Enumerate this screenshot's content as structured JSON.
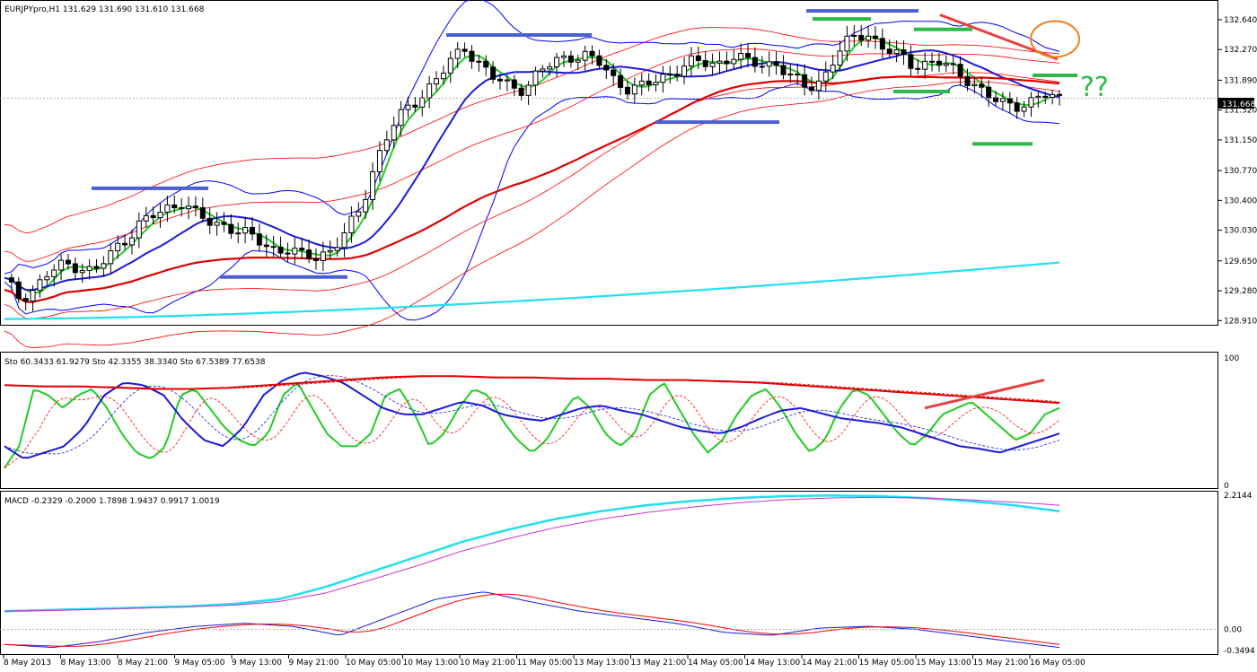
{
  "panels": {
    "price_header": "EURJPYpro,H1  131.629 131.690 131.610 131.668",
    "stoch_header": "Sto 60.3433 61.9279  Sto 42.3355 38.3340  Sto 67.5389 77.6538",
    "macd_header": "MACD -0.2329 -0.2000 1.7898 1.9437 0.9917 1.0019"
  },
  "annotation_text": "??",
  "current_price_label": "131.668",
  "colors": {
    "background": "#ffffff",
    "candle": "#000000",
    "bollinger": "#0000ff",
    "envelope": "#ff0000",
    "ema_green": "#22cc22",
    "ema_blue": "#1a1adc",
    "ema_red": "#e00000",
    "ema_cyan": "#20e0f0",
    "support_blue_lines": "#4a5fd0",
    "support_green_lines": "#2db84a",
    "trendline": "#e84040",
    "circle": "#f08020",
    "macd_signal_magenta": "#cc33cc"
  },
  "chart_data": [
    {
      "type": "candlestick",
      "panel": "price",
      "symbol": "EURJPYpro",
      "timeframe": "H1",
      "ohlc_last": {
        "open": 131.629,
        "high": 131.69,
        "low": 131.61,
        "close": 131.668
      },
      "y_ticks": [
        132.64,
        132.27,
        131.89,
        131.52,
        131.15,
        130.77,
        130.4,
        130.03,
        129.65,
        129.28,
        128.91
      ],
      "ylim": [
        128.88,
        132.84
      ],
      "x_tick_labels": [
        "8 May 2013",
        "8 May 13:00",
        "8 May 21:00",
        "9 May 05:00",
        "9 May 13:00",
        "9 May 21:00",
        "10 May 05:00",
        "10 May 13:00",
        "10 May 21:00",
        "11 May 05:00",
        "13 May 13:00",
        "13 May 21:00",
        "14 May 05:00",
        "14 May 13:00",
        "14 May 21:00",
        "15 May 05:00",
        "15 May 13:00",
        "15 May 21:00",
        "16 May 05:00"
      ],
      "close_path": [
        129.4,
        129.2,
        129.3,
        129.5,
        129.6,
        129.6,
        129.5,
        129.7,
        129.9,
        130.1,
        130.2,
        130.3,
        130.4,
        130.2,
        130.1,
        130.1,
        130.0,
        129.9,
        129.8,
        129.8,
        129.7,
        129.7,
        129.8,
        130.0,
        130.3,
        130.9,
        131.3,
        131.5,
        131.7,
        131.9,
        132.1,
        132.3,
        132.1,
        131.9,
        131.8,
        131.8,
        132.0,
        132.1,
        132.2,
        132.2,
        132.1,
        131.9,
        131.8,
        131.8,
        131.9,
        132.0,
        132.1,
        132.1,
        132.1,
        132.2,
        132.1,
        132.1,
        132.1,
        131.9,
        131.8,
        131.9,
        132.2,
        132.4,
        132.5,
        132.3,
        132.2,
        132.1,
        132.1,
        132.1,
        132.0,
        131.9,
        131.7,
        131.6,
        131.6,
        131.6,
        131.7,
        131.67
      ],
      "overlays": [
        "Bollinger Bands (blue)",
        "Envelopes (red)",
        "EMA green",
        "EMA blue",
        "EMA red",
        "EMA cyan"
      ]
    },
    {
      "type": "line",
      "panel": "stochastic",
      "ylim": [
        0,
        100
      ],
      "y_ticks": [
        100,
        0
      ],
      "series": [
        {
          "name": "Sto fast",
          "values": [
            13,
            30,
            75,
            70,
            60,
            70,
            75,
            60,
            40,
            25,
            20,
            30,
            70,
            75,
            60,
            45,
            35,
            30,
            40,
            70,
            80,
            60,
            40,
            30,
            30,
            40,
            70,
            75,
            55,
            30,
            40,
            60,
            75,
            70,
            50,
            35,
            25,
            35,
            55,
            70,
            60,
            40,
            30,
            40,
            70,
            80,
            60,
            40,
            25,
            35,
            55,
            70,
            75,
            60,
            40,
            25,
            35,
            60,
            75,
            70,
            55,
            40,
            30,
            40,
            55,
            60,
            65,
            55,
            45,
            35,
            40,
            55,
            60
          ]
        },
        {
          "name": "Sto medium",
          "values": [
            30,
            20,
            25,
            30,
            45,
            70,
            80,
            78,
            70,
            50,
            35,
            30,
            45,
            70,
            82,
            88,
            85,
            80,
            70,
            60,
            55,
            55,
            60,
            65,
            62,
            55,
            52,
            50,
            55,
            60,
            62,
            58,
            55,
            50,
            45,
            42,
            40,
            45,
            52,
            58,
            60,
            56,
            52,
            50,
            48,
            45,
            40,
            35,
            30,
            28,
            25,
            30,
            35,
            40
          ]
        },
        {
          "name": "Sto slow",
          "values": [
            78,
            77,
            77,
            76,
            75,
            75,
            76,
            78,
            80,
            82,
            84,
            85,
            85,
            84,
            84,
            83,
            83,
            82,
            82,
            81,
            80,
            78,
            76,
            74,
            72,
            70,
            68,
            66,
            64
          ]
        }
      ]
    },
    {
      "type": "line",
      "panel": "macd",
      "y_ticks": [
        2.2144,
        0.0,
        -0.3494
      ],
      "ylim": [
        -0.3494,
        2.2144
      ],
      "series": [
        {
          "name": "MACD main",
          "values": [
            0.3,
            0.32,
            0.34,
            0.36,
            0.38,
            0.42,
            0.5,
            0.7,
            0.95,
            1.2,
            1.45,
            1.65,
            1.82,
            1.95,
            2.05,
            2.12,
            2.17,
            2.2,
            2.21,
            2.2,
            2.17,
            2.12,
            2.05,
            1.95
          ]
        },
        {
          "name": "MACD signal",
          "values": [
            0.3,
            0.31,
            0.33,
            0.35,
            0.37,
            0.4,
            0.46,
            0.6,
            0.82,
            1.05,
            1.3,
            1.5,
            1.68,
            1.82,
            1.93,
            2.02,
            2.09,
            2.14,
            2.17,
            2.18,
            2.17,
            2.14,
            2.1,
            2.05
          ]
        },
        {
          "name": "MACD histogram",
          "values": [
            -0.25,
            -0.3,
            -0.2,
            -0.05,
            0.05,
            0.1,
            0.05,
            -0.1,
            0.2,
            0.5,
            0.62,
            0.45,
            0.3,
            0.2,
            0.1,
            -0.05,
            -0.1,
            0.02,
            0.05,
            0.0,
            -0.1,
            -0.2,
            -0.3
          ]
        }
      ]
    }
  ]
}
